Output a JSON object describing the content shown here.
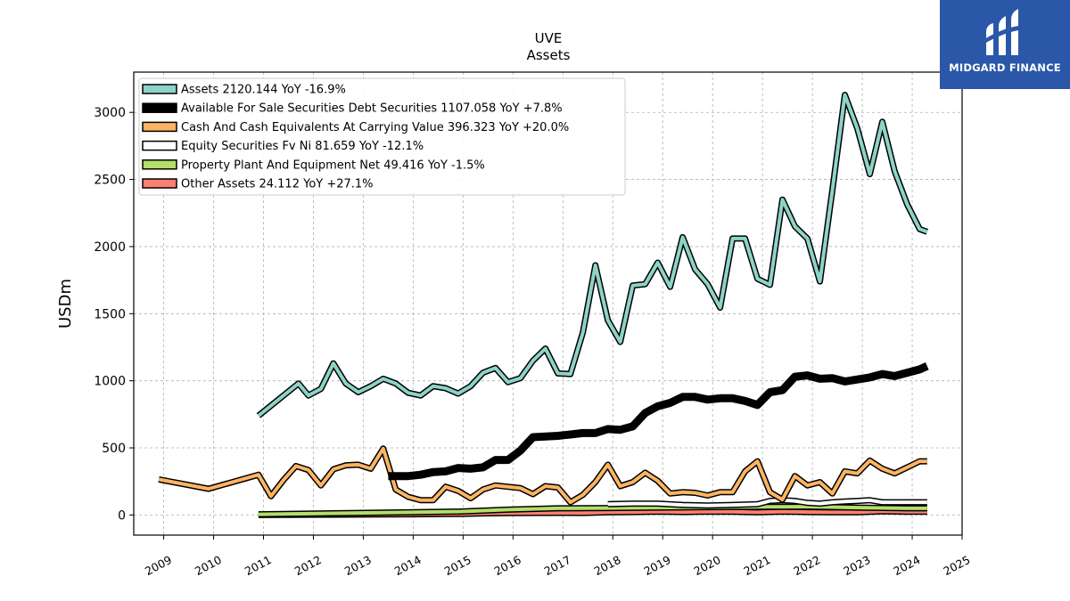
{
  "brand": {
    "name": "MIDGARD FINANCE",
    "color": "#2a57a8"
  },
  "chart_data": {
    "type": "line",
    "title": "UVE",
    "subtitle": "Assets",
    "xlabel": "",
    "ylabel": "USDm",
    "xlim": [
      2008.4,
      2025.0
    ],
    "ylim": [
      -150,
      3300
    ],
    "x_ticks": [
      "2009",
      "2010",
      "2011",
      "2012",
      "2013",
      "2014",
      "2015",
      "2016",
      "2017",
      "2018",
      "2019",
      "2020",
      "2021",
      "2022",
      "2023",
      "2024",
      "2025"
    ],
    "y_ticks": [
      0,
      500,
      1000,
      1500,
      2000,
      2500,
      3000
    ],
    "grid": true,
    "legend_position": "top-left",
    "series": [
      {
        "name": "Assets  2120.144 YoY -16.9%",
        "color": "#8dd3c7",
        "weight": "normal",
        "x": [
          2010.9,
          2011.7,
          2011.9,
          2012.15,
          2012.4,
          2012.65,
          2012.9,
          2013.15,
          2013.4,
          2013.65,
          2013.9,
          2014.15,
          2014.4,
          2014.65,
          2014.9,
          2015.15,
          2015.4,
          2015.65,
          2015.9,
          2016.15,
          2016.4,
          2016.65,
          2016.9,
          2017.15,
          2017.4,
          2017.65,
          2017.9,
          2018.15,
          2018.4,
          2018.65,
          2018.9,
          2019.15,
          2019.4,
          2019.65,
          2019.9,
          2020.15,
          2020.4,
          2020.65,
          2020.9,
          2021.15,
          2021.4,
          2021.65,
          2021.9,
          2022.15,
          2022.4,
          2022.65,
          2022.9,
          2023.15,
          2023.4,
          2023.65,
          2023.9,
          2024.15,
          2024.3
        ],
        "y": [
          740,
          980,
          890,
          940,
          1130,
          980,
          915,
          960,
          1015,
          980,
          910,
          890,
          960,
          945,
          905,
          960,
          1060,
          1095,
          990,
          1020,
          1150,
          1240,
          1055,
          1050,
          1360,
          1860,
          1450,
          1290,
          1710,
          1720,
          1880,
          1700,
          2070,
          1830,
          1720,
          1545,
          2060,
          2060,
          1760,
          1715,
          2350,
          2150,
          2060,
          1740,
          2420,
          3130,
          2880,
          2540,
          2930,
          2560,
          2315,
          2130,
          2110
        ]
      },
      {
        "name": "Available For Sale Securities Debt Securities  1107.058 YoY +7.8%",
        "color": "#000000",
        "weight": "heavy",
        "x": [
          2013.5,
          2013.65,
          2013.9,
          2014.15,
          2014.4,
          2014.65,
          2014.9,
          2015.15,
          2015.4,
          2015.65,
          2015.9,
          2016.15,
          2016.4,
          2016.65,
          2016.9,
          2017.15,
          2017.4,
          2017.65,
          2017.9,
          2018.15,
          2018.4,
          2018.65,
          2018.9,
          2019.15,
          2019.4,
          2019.65,
          2019.9,
          2020.15,
          2020.4,
          2020.65,
          2020.9,
          2021.15,
          2021.4,
          2021.65,
          2021.9,
          2022.15,
          2022.4,
          2022.65,
          2022.9,
          2023.15,
          2023.4,
          2023.65,
          2023.9,
          2024.15,
          2024.3
        ],
        "y": [
          290,
          290,
          290,
          300,
          320,
          325,
          350,
          345,
          355,
          410,
          410,
          480,
          580,
          585,
          590,
          600,
          610,
          610,
          640,
          635,
          660,
          760,
          810,
          835,
          880,
          880,
          860,
          870,
          870,
          850,
          820,
          915,
          930,
          1030,
          1040,
          1015,
          1020,
          995,
          1010,
          1025,
          1050,
          1035,
          1060,
          1085,
          1110
        ]
      },
      {
        "name": "Cash And Cash Equivalents At Carrying Value  396.323 YoY +20.0%",
        "color": "#fdb462",
        "weight": "normal",
        "x": [
          2008.9,
          2009.9,
          2010.9,
          2011.15,
          2011.4,
          2011.65,
          2011.9,
          2012.15,
          2012.4,
          2012.65,
          2012.9,
          2013.15,
          2013.4,
          2013.65,
          2013.9,
          2014.15,
          2014.4,
          2014.65,
          2014.9,
          2015.15,
          2015.4,
          2015.65,
          2015.9,
          2016.15,
          2016.4,
          2016.65,
          2016.9,
          2017.15,
          2017.4,
          2017.65,
          2017.9,
          2018.15,
          2018.4,
          2018.65,
          2018.9,
          2019.15,
          2019.4,
          2019.65,
          2019.9,
          2020.15,
          2020.4,
          2020.65,
          2020.9,
          2021.15,
          2021.4,
          2021.65,
          2021.9,
          2022.15,
          2022.4,
          2022.65,
          2022.9,
          2023.15,
          2023.4,
          2023.65,
          2023.9,
          2024.15,
          2024.3
        ],
        "y": [
          265,
          195,
          300,
          140,
          260,
          365,
          335,
          220,
          340,
          370,
          375,
          345,
          495,
          190,
          135,
          110,
          110,
          210,
          180,
          125,
          190,
          220,
          210,
          200,
          155,
          215,
          205,
          95,
          150,
          245,
          375,
          215,
          245,
          315,
          255,
          160,
          170,
          165,
          145,
          170,
          170,
          325,
          400,
          170,
          115,
          290,
          220,
          245,
          160,
          325,
          310,
          405,
          345,
          310,
          355,
          400,
          400
        ]
      },
      {
        "name": "Equity Securities Fv Ni  81.659 YoY -12.1%",
        "color": "#ffffff",
        "weight": "normal",
        "x": [
          2017.9,
          2018.4,
          2018.9,
          2019.4,
          2019.9,
          2020.4,
          2020.9,
          2021.15,
          2021.4,
          2021.65,
          2021.9,
          2022.15,
          2022.4,
          2022.65,
          2022.9,
          2023.15,
          2023.4,
          2023.65,
          2023.9,
          2024.15,
          2024.3
        ],
        "y": [
          80,
          85,
          85,
          75,
          70,
          75,
          80,
          105,
          110,
          105,
          90,
          85,
          95,
          100,
          105,
          110,
          95,
          95,
          95,
          95,
          95
        ]
      },
      {
        "name": "Property Plant And Equipment Net  49.416 YoY -1.5%",
        "color": "#b3de69",
        "weight": "normal",
        "x": [
          2010.9,
          2011.9,
          2012.9,
          2013.9,
          2014.9,
          2015.9,
          2016.9,
          2017.9,
          2018.9,
          2019.9,
          2020.9,
          2021.9,
          2022.9,
          2023.9,
          2024.3
        ],
        "y": [
          5,
          10,
          15,
          20,
          25,
          40,
          50,
          52,
          55,
          58,
          60,
          62,
          55,
          50,
          50
        ]
      },
      {
        "name": "Other Assets  24.112 YoY +27.1%",
        "color": "#fb8072",
        "weight": "normal",
        "x": [
          2010.9,
          2011.9,
          2012.9,
          2013.9,
          2014.9,
          2015.4,
          2015.9,
          2016.4,
          2016.9,
          2017.4,
          2017.9,
          2018.4,
          2018.9,
          2019.4,
          2019.9,
          2020.4,
          2020.9,
          2021.4,
          2021.9,
          2022.4,
          2022.9,
          2023.4,
          2023.9,
          2024.3
        ],
        "y": [
          0,
          2,
          3,
          5,
          8,
          12,
          14,
          15,
          16,
          15,
          20,
          22,
          25,
          22,
          25,
          24,
          20,
          25,
          22,
          20,
          20,
          28,
          24,
          24
        ]
      }
    ]
  }
}
